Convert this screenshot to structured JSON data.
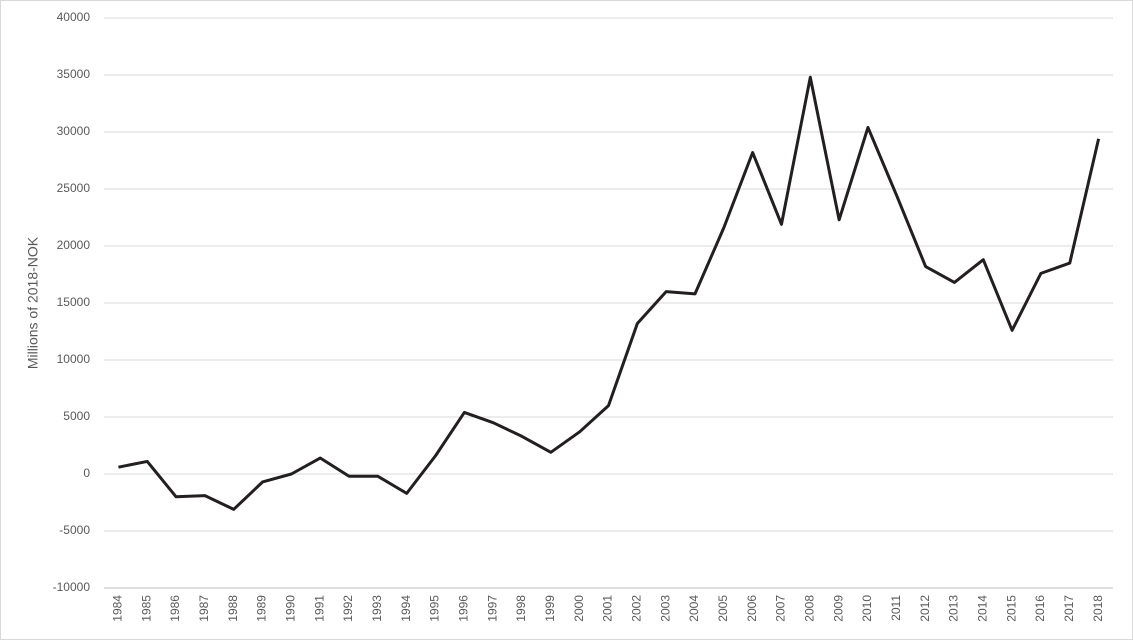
{
  "chart_data": {
    "type": "line",
    "y_label": "Millions of 2018-NOK",
    "categories": [
      "1984",
      "1985",
      "1986",
      "1987",
      "1988",
      "1989",
      "1990",
      "1991",
      "1992",
      "1993",
      "1994",
      "1995",
      "1996",
      "1997",
      "1998",
      "1999",
      "2000",
      "2001",
      "2002",
      "2003",
      "2004",
      "2005",
      "2006",
      "2007",
      "2008",
      "2009",
      "2010",
      "2011",
      "2012",
      "2013",
      "2014",
      "2015",
      "2016",
      "2017",
      "2018"
    ],
    "values": [
      600,
      1100,
      -2000,
      -1900,
      -3100,
      -700,
      0,
      1400,
      -200,
      -200,
      -1700,
      1600,
      5400,
      4500,
      3300,
      1900,
      3700,
      6000,
      13200,
      16000,
      15800,
      21600,
      28200,
      21900,
      34800,
      22300,
      30400,
      24400,
      18200,
      16800,
      18800,
      12600,
      17600,
      18500,
      29400
    ],
    "color": "#231f20",
    "ylim": [
      -10000,
      40000
    ],
    "yticks": [
      -10000,
      -5000,
      0,
      5000,
      10000,
      15000,
      20000,
      25000,
      30000,
      35000,
      40000
    ],
    "grid": true
  }
}
